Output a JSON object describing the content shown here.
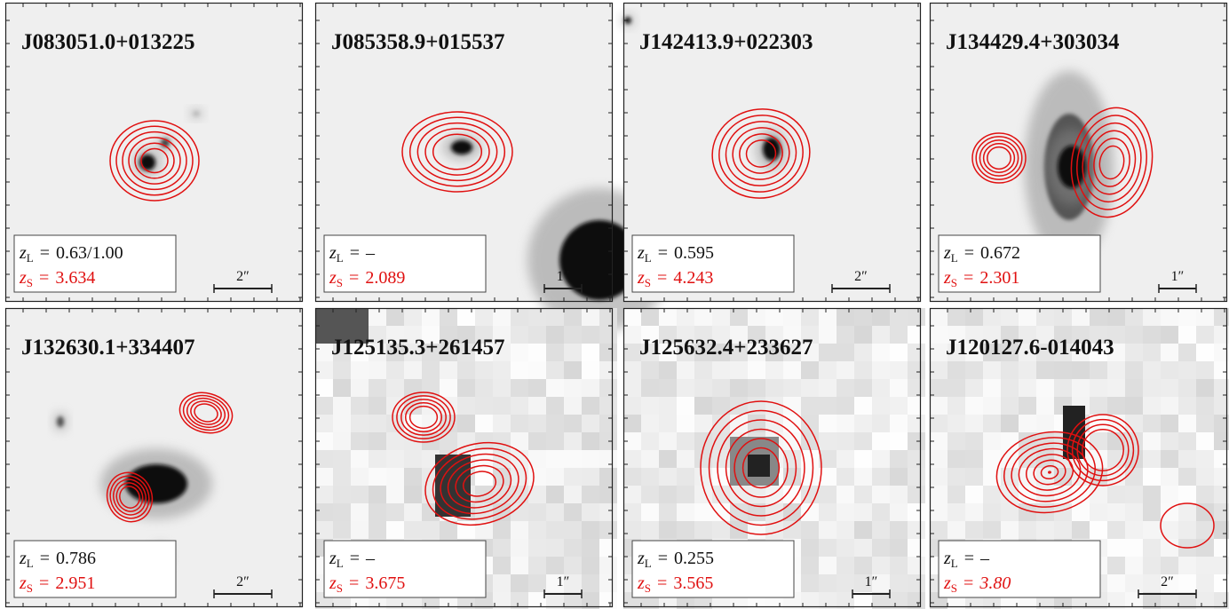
{
  "labels": {
    "z": "z",
    "lens": "L",
    "source": "S",
    "equals": "="
  },
  "panels": [
    {
      "name": "J083051.0+013225",
      "z_lens": "0.63/1.00",
      "z_source": "3.634",
      "scale": "2″"
    },
    {
      "name": "J085358.9+015537",
      "z_lens": "–",
      "z_source": "2.089",
      "scale": "1″"
    },
    {
      "name": "J142413.9+022303",
      "z_lens": "0.595",
      "z_source": "4.243",
      "scale": "2″"
    },
    {
      "name": "J134429.4+303034",
      "z_lens": "0.672",
      "z_source": "2.301",
      "scale": "1″"
    },
    {
      "name": "J132630.1+334407",
      "z_lens": "0.786",
      "z_source": "2.951",
      "scale": "2″"
    },
    {
      "name": "J125135.3+261457",
      "z_lens": "–",
      "z_source": "3.675",
      "scale": "1″"
    },
    {
      "name": "J125632.4+233627",
      "z_lens": "0.255",
      "z_source": "3.565",
      "scale": "1″"
    },
    {
      "name": "J120127.6-014043",
      "z_lens": "–",
      "z_source": "3.80",
      "scale": "2″",
      "z_source_italic": true
    }
  ]
}
